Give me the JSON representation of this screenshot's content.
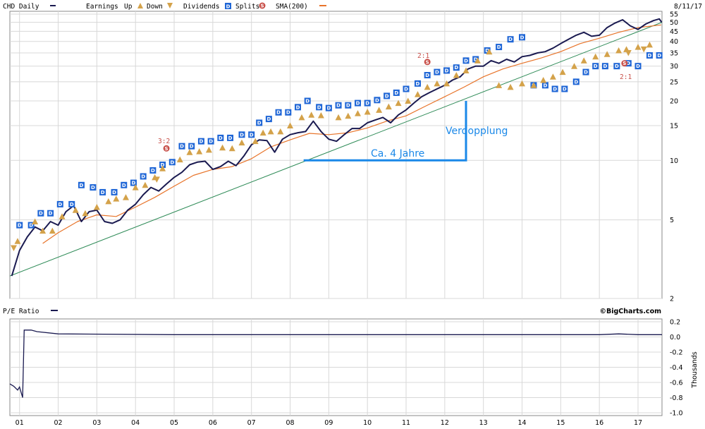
{
  "chart_data": [
    {
      "type": "line",
      "panel": "price",
      "scale": "log",
      "legend": {
        "symbol_label": "CHD Daily",
        "earnings_label": "Earnings",
        "up_label": "Up",
        "down_label": "Down",
        "dividends_label": "Dividends",
        "splits_label": "Splits",
        "sma_label": "SMA(200)"
      },
      "date_label": "8/11/17",
      "ylim": [
        2,
        55
      ],
      "yticks": [
        2,
        5,
        10,
        15,
        20,
        25,
        30,
        35,
        40,
        45,
        50,
        55
      ],
      "xticks": [
        "01",
        "02",
        "03",
        "04",
        "05",
        "06",
        "07",
        "08",
        "09",
        "10",
        "11",
        "12",
        "13",
        "14",
        "15",
        "16",
        "17"
      ],
      "xlim": [
        2000.75,
        2017.62
      ],
      "series": [
        {
          "name": "CHD Daily",
          "color": "#1a1a50",
          "points": [
            [
              2000.8,
              2.6
            ],
            [
              2001.0,
              3.5
            ],
            [
              2001.2,
              4.1
            ],
            [
              2001.4,
              4.6
            ],
            [
              2001.6,
              4.4
            ],
            [
              2001.8,
              4.9
            ],
            [
              2002.0,
              4.7
            ],
            [
              2002.2,
              5.5
            ],
            [
              2002.4,
              5.9
            ],
            [
              2002.6,
              4.9
            ],
            [
              2002.8,
              5.5
            ],
            [
              2003.0,
              5.6
            ],
            [
              2003.2,
              4.9
            ],
            [
              2003.4,
              4.8
            ],
            [
              2003.6,
              5.0
            ],
            [
              2003.8,
              5.6
            ],
            [
              2004.0,
              6.0
            ],
            [
              2004.2,
              6.7
            ],
            [
              2004.4,
              7.3
            ],
            [
              2004.6,
              7.0
            ],
            [
              2004.8,
              7.6
            ],
            [
              2005.0,
              8.2
            ],
            [
              2005.2,
              8.7
            ],
            [
              2005.4,
              9.5
            ],
            [
              2005.6,
              9.8
            ],
            [
              2005.8,
              9.9
            ],
            [
              2006.0,
              9.0
            ],
            [
              2006.2,
              9.3
            ],
            [
              2006.4,
              9.9
            ],
            [
              2006.6,
              9.4
            ],
            [
              2006.8,
              10.5
            ],
            [
              2007.0,
              12.0
            ],
            [
              2007.2,
              12.7
            ],
            [
              2007.4,
              12.6
            ],
            [
              2007.6,
              11.0
            ],
            [
              2007.8,
              12.8
            ],
            [
              2008.0,
              13.5
            ],
            [
              2008.2,
              13.8
            ],
            [
              2008.4,
              14.0
            ],
            [
              2008.6,
              15.8
            ],
            [
              2008.8,
              14.0
            ],
            [
              2009.0,
              12.8
            ],
            [
              2009.2,
              12.5
            ],
            [
              2009.4,
              13.5
            ],
            [
              2009.6,
              14.5
            ],
            [
              2009.8,
              14.5
            ],
            [
              2010.0,
              15.5
            ],
            [
              2010.2,
              16.0
            ],
            [
              2010.4,
              16.5
            ],
            [
              2010.6,
              15.5
            ],
            [
              2010.8,
              17.0
            ],
            [
              2011.0,
              18.0
            ],
            [
              2011.2,
              19.5
            ],
            [
              2011.4,
              21.0
            ],
            [
              2011.6,
              22.0
            ],
            [
              2011.8,
              23.0
            ],
            [
              2012.0,
              24.0
            ],
            [
              2012.2,
              25.5
            ],
            [
              2012.4,
              26.5
            ],
            [
              2012.6,
              29.0
            ],
            [
              2012.8,
              30.0
            ],
            [
              2013.0,
              30.0
            ],
            [
              2013.2,
              32.0
            ],
            [
              2013.4,
              31.0
            ],
            [
              2013.6,
              32.5
            ],
            [
              2013.8,
              31.5
            ],
            [
              2014.0,
              33.5
            ],
            [
              2014.2,
              34.0
            ],
            [
              2014.4,
              35.0
            ],
            [
              2014.6,
              35.5
            ],
            [
              2014.8,
              37.0
            ],
            [
              2015.0,
              39.0
            ],
            [
              2015.2,
              41.0
            ],
            [
              2015.4,
              43.0
            ],
            [
              2015.6,
              44.5
            ],
            [
              2015.8,
              42.5
            ],
            [
              2016.0,
              43.0
            ],
            [
              2016.2,
              47.0
            ],
            [
              2016.4,
              49.5
            ],
            [
              2016.6,
              51.5
            ],
            [
              2016.8,
              48.0
            ],
            [
              2017.0,
              46.0
            ],
            [
              2017.2,
              49.0
            ],
            [
              2017.4,
              51.0
            ],
            [
              2017.55,
              52.0
            ],
            [
              2017.61,
              50.0
            ]
          ]
        },
        {
          "name": "SMA(200)",
          "color": "#e8742a",
          "points": [
            [
              2001.6,
              3.8
            ],
            [
              2002.0,
              4.3
            ],
            [
              2002.5,
              4.9
            ],
            [
              2003.0,
              5.3
            ],
            [
              2003.5,
              5.2
            ],
            [
              2004.0,
              5.8
            ],
            [
              2004.5,
              6.5
            ],
            [
              2005.0,
              7.4
            ],
            [
              2005.5,
              8.4
            ],
            [
              2006.0,
              9.0
            ],
            [
              2006.5,
              9.3
            ],
            [
              2007.0,
              10.2
            ],
            [
              2007.5,
              11.7
            ],
            [
              2008.0,
              12.7
            ],
            [
              2008.5,
              13.7
            ],
            [
              2009.0,
              13.5
            ],
            [
              2009.5,
              13.8
            ],
            [
              2010.0,
              14.6
            ],
            [
              2010.5,
              15.8
            ],
            [
              2011.0,
              16.8
            ],
            [
              2011.5,
              18.8
            ],
            [
              2012.0,
              21.0
            ],
            [
              2012.5,
              23.5
            ],
            [
              2013.0,
              26.5
            ],
            [
              2013.5,
              29.0
            ],
            [
              2014.0,
              31.0
            ],
            [
              2014.5,
              33.0
            ],
            [
              2015.0,
              35.5
            ],
            [
              2015.5,
              39.0
            ],
            [
              2016.0,
              41.5
            ],
            [
              2016.5,
              44.5
            ],
            [
              2017.0,
              47.0
            ],
            [
              2017.6,
              48.5
            ]
          ]
        },
        {
          "name": "",
          "color": "#2e8b57",
          "points": [
            [
              2000.75,
              2.6
            ],
            [
              2017.62,
              50.0
            ]
          ]
        }
      ],
      "annotations": {
        "verdopplung": "Verdopplung",
        "vier_jahre": "Ca. 4 Jahre",
        "split_2005": "3:2",
        "split_2011": "2:1",
        "split_2016": "2:1"
      },
      "splits": [
        [
          2004.8,
          11.5
        ],
        [
          2011.55,
          31.5
        ],
        [
          2016.65,
          31.0
        ]
      ],
      "dividends": [
        [
          2001.0,
          4.7
        ],
        [
          2001.3,
          4.7
        ],
        [
          2001.55,
          5.4
        ],
        [
          2001.8,
          5.4
        ],
        [
          2002.05,
          6.0
        ],
        [
          2002.35,
          6.0
        ],
        [
          2002.6,
          7.5
        ],
        [
          2002.9,
          7.3
        ],
        [
          2003.15,
          6.9
        ],
        [
          2003.45,
          6.9
        ],
        [
          2003.7,
          7.5
        ],
        [
          2003.95,
          7.7
        ],
        [
          2004.2,
          8.3
        ],
        [
          2004.45,
          8.9
        ],
        [
          2004.7,
          9.5
        ],
        [
          2004.95,
          9.8
        ],
        [
          2005.2,
          11.8
        ],
        [
          2005.45,
          11.8
        ],
        [
          2005.7,
          12.5
        ],
        [
          2005.95,
          12.5
        ],
        [
          2006.2,
          13.0
        ],
        [
          2006.45,
          13.0
        ],
        [
          2006.75,
          13.5
        ],
        [
          2007.0,
          13.5
        ],
        [
          2007.2,
          15.5
        ],
        [
          2007.45,
          16.2
        ],
        [
          2007.7,
          17.5
        ],
        [
          2007.95,
          17.5
        ],
        [
          2008.2,
          18.6
        ],
        [
          2008.45,
          20.0
        ],
        [
          2008.75,
          18.6
        ],
        [
          2009.0,
          18.4
        ],
        [
          2009.25,
          19.0
        ],
        [
          2009.5,
          19.0
        ],
        [
          2009.75,
          19.5
        ],
        [
          2010.0,
          19.5
        ],
        [
          2010.25,
          20.2
        ],
        [
          2010.5,
          21.2
        ],
        [
          2010.75,
          22.0
        ],
        [
          2011.0,
          23.0
        ],
        [
          2011.3,
          24.5
        ],
        [
          2011.55,
          27.0
        ],
        [
          2011.8,
          28.0
        ],
        [
          2012.05,
          28.5
        ],
        [
          2012.3,
          29.5
        ],
        [
          2012.55,
          32.0
        ],
        [
          2012.8,
          32.5
        ],
        [
          2013.1,
          36.0
        ],
        [
          2013.4,
          37.5
        ],
        [
          2013.7,
          41.0
        ],
        [
          2014.0,
          42.0
        ],
        [
          2014.3,
          24.0
        ],
        [
          2014.6,
          24.0
        ],
        [
          2014.85,
          23.0
        ],
        [
          2015.1,
          23.0
        ],
        [
          2015.4,
          25.0
        ],
        [
          2015.65,
          28.0
        ],
        [
          2015.9,
          30.0
        ],
        [
          2016.15,
          30.0
        ],
        [
          2016.45,
          30.0
        ],
        [
          2016.75,
          31.0
        ],
        [
          2017.0,
          30.0
        ],
        [
          2017.3,
          34.0
        ],
        [
          2017.55,
          34.0
        ]
      ],
      "earnings_up": [
        [
          2000.95,
          3.9
        ],
        [
          2001.4,
          4.9
        ],
        [
          2001.6,
          4.4
        ],
        [
          2001.85,
          4.4
        ],
        [
          2002.1,
          5.2
        ],
        [
          2002.45,
          5.6
        ],
        [
          2002.7,
          5.4
        ],
        [
          2003.0,
          5.8
        ],
        [
          2003.3,
          6.2
        ],
        [
          2003.5,
          6.4
        ],
        [
          2003.75,
          6.5
        ],
        [
          2004.0,
          7.3
        ],
        [
          2004.25,
          7.5
        ],
        [
          2004.5,
          8.2
        ],
        [
          2004.7,
          9.1
        ],
        [
          2005.15,
          10.1
        ],
        [
          2005.4,
          11.0
        ],
        [
          2005.65,
          11.1
        ],
        [
          2005.9,
          11.3
        ],
        [
          2006.25,
          11.6
        ],
        [
          2006.5,
          11.5
        ],
        [
          2006.75,
          12.3
        ],
        [
          2007.1,
          12.5
        ],
        [
          2007.3,
          13.8
        ],
        [
          2007.5,
          14.0
        ],
        [
          2007.75,
          14.0
        ],
        [
          2008.0,
          15.0
        ],
        [
          2008.3,
          16.5
        ],
        [
          2008.55,
          17.0
        ],
        [
          2008.8,
          16.9
        ],
        [
          2009.25,
          16.5
        ],
        [
          2009.5,
          16.8
        ],
        [
          2009.75,
          17.3
        ],
        [
          2010.0,
          17.6
        ],
        [
          2010.3,
          18.0
        ],
        [
          2010.55,
          18.7
        ],
        [
          2010.8,
          19.5
        ],
        [
          2011.05,
          20.0
        ],
        [
          2011.3,
          21.6
        ],
        [
          2011.55,
          23.5
        ],
        [
          2011.8,
          24.5
        ],
        [
          2012.05,
          24.5
        ],
        [
          2012.3,
          27.0
        ],
        [
          2012.55,
          28.5
        ],
        [
          2012.85,
          32.0
        ],
        [
          2013.15,
          35.5
        ],
        [
          2013.4,
          24.0
        ],
        [
          2013.7,
          23.5
        ],
        [
          2014.0,
          24.5
        ],
        [
          2014.3,
          24.0
        ],
        [
          2014.55,
          25.5
        ],
        [
          2014.8,
          26.5
        ],
        [
          2015.05,
          28.0
        ],
        [
          2015.35,
          30.0
        ],
        [
          2015.6,
          32.0
        ],
        [
          2015.9,
          33.5
        ],
        [
          2016.2,
          34.5
        ],
        [
          2016.5,
          36.0
        ],
        [
          2016.7,
          36.5
        ],
        [
          2017.0,
          37.5
        ],
        [
          2017.3,
          38.5
        ]
      ],
      "earnings_down": [
        [
          2000.85,
          3.6
        ],
        [
          2004.55,
          8.0
        ],
        [
          2016.75,
          35.0
        ],
        [
          2017.15,
          36.5
        ]
      ]
    },
    {
      "type": "line",
      "panel": "pe",
      "title": "P/E Ratio",
      "ylabel": "Thousands",
      "ylim": [
        -1.0,
        0.2
      ],
      "yticks": [
        "0.2",
        "0.0",
        "-0.2",
        "-0.4",
        "-0.6",
        "-0.8",
        "-1.0"
      ],
      "ytick_values": [
        0.2,
        0.0,
        -0.2,
        -0.4,
        -0.6,
        -0.8,
        -1.0
      ],
      "series": [
        {
          "name": "P/E Ratio",
          "color": "#1a1a50",
          "points": [
            [
              2000.75,
              -0.62
            ],
            [
              2000.85,
              -0.65
            ],
            [
              2000.95,
              -0.7
            ],
            [
              2001.0,
              -0.66
            ],
            [
              2001.08,
              -0.8
            ],
            [
              2001.12,
              0.09
            ],
            [
              2001.3,
              0.09
            ],
            [
              2001.45,
              0.07
            ],
            [
              2002.0,
              0.04
            ],
            [
              2005.0,
              0.03
            ],
            [
              2009.0,
              0.03
            ],
            [
              2013.0,
              0.03
            ],
            [
              2016.0,
              0.03
            ],
            [
              2016.5,
              0.04
            ],
            [
              2017.0,
              0.03
            ],
            [
              2017.62,
              0.03
            ]
          ]
        }
      ]
    }
  ],
  "footer": {
    "credit": "©BigCharts.com"
  }
}
